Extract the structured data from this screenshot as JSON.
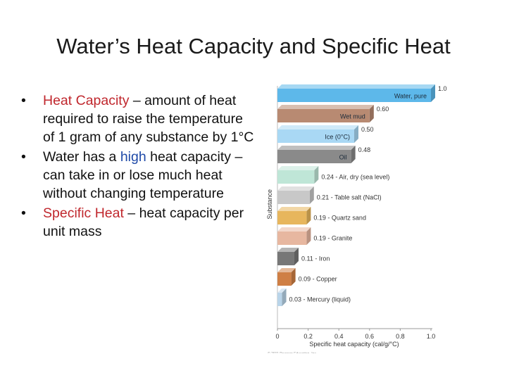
{
  "slide": {
    "title": "Water’s Heat Capacity and Specific Heat",
    "bullets": [
      {
        "bullet": "•",
        "lead": "Heat Capacity",
        "lead_color": "#c0272d",
        "rest": " – amount of heat required to raise the temperature of 1 gram of any substance by 1°C"
      },
      {
        "bullet": "•",
        "pre": "Water has a ",
        "emph": "high",
        "emph_color": "#1f4aa8",
        "post": " heat capacity – can take in or lose much heat without changing temperature"
      },
      {
        "bullet": "•",
        "lead": "Specific Heat",
        "lead_color": "#c0272d",
        "rest": " – heat capacity per unit mass"
      }
    ]
  },
  "chart_data": {
    "type": "bar",
    "orientation": "horizontal",
    "categories": [
      "Water, pure",
      "Wet mud",
      "Ice (0°C)",
      "Oil",
      "Air, dry (sea level)",
      "Table salt (NaCl)",
      "Quartz sand",
      "Granite",
      "Iron",
      "Copper",
      "Mercury (liquid)"
    ],
    "series": [
      {
        "values": [
          1.0,
          0.6,
          0.5,
          0.48,
          0.24,
          0.21,
          0.19,
          0.19,
          0.11,
          0.09,
          0.03
        ]
      }
    ],
    "value_labels": [
      "1.0",
      "0.60",
      "0.50",
      "0.48",
      "0.24 - Air, dry (sea level)",
      "0.21 - Table salt (NaCl)",
      "0.19 - Quartz sand",
      "0.19 - Granite",
      "0.11 - Iron",
      "0.09 - Copper",
      "0.03 - Mercury (liquid)"
    ],
    "inside_labels": [
      "Water, pure",
      "Wet mud",
      "Ice (0°C)",
      "Oil",
      "",
      "",
      "",
      "",
      "",
      "",
      ""
    ],
    "colors": [
      "#5db8ea",
      "#b88a72",
      "#a9d8f4",
      "#8a8a8a",
      "#bfe6d7",
      "#c8c8c8",
      "#e7b65d",
      "#e7b7a0",
      "#777777",
      "#cf7f45",
      "#b9d4e9"
    ],
    "xlabel": "Specific heat capacity (cal/g/°C)",
    "ylabel": "Substance",
    "xticks": [
      "0",
      "0.2",
      "0.4",
      "0.6",
      "0.8",
      "1.0"
    ],
    "xlim": [
      0,
      1.0
    ],
    "copyright": "© 2011 Pearson Education, Inc."
  }
}
